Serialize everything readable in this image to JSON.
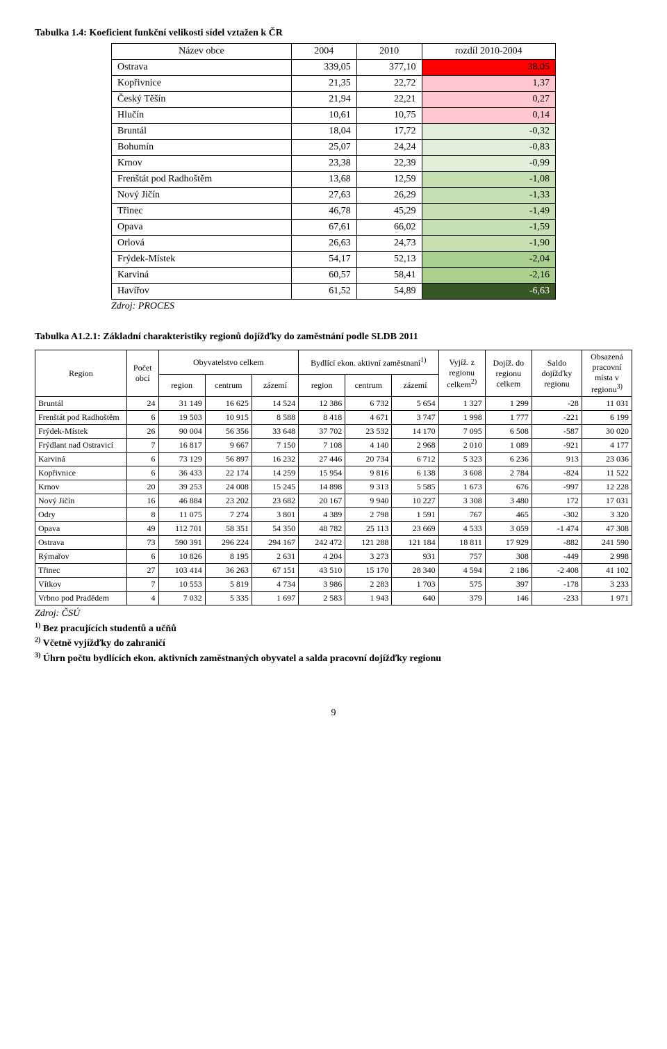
{
  "table1": {
    "caption": "Tabulka 1.4: Koeficient funkční velikosti sídel vztažen k ČR",
    "headers": [
      "Název obce",
      "2004",
      "2010",
      "rozdíl 2010-2004"
    ],
    "rows": [
      {
        "name": "Ostrava",
        "v2004": "339,05",
        "v2010": "377,10",
        "diff": "38,05",
        "bg": "#ff0000"
      },
      {
        "name": "Kopřivnice",
        "v2004": "21,35",
        "v2010": "22,72",
        "diff": "1,37",
        "bg": "#ffc7ce"
      },
      {
        "name": "Český Těšín",
        "v2004": "21,94",
        "v2010": "22,21",
        "diff": "0,27",
        "bg": "#ffc7ce"
      },
      {
        "name": "Hlučín",
        "v2004": "10,61",
        "v2010": "10,75",
        "diff": "0,14",
        "bg": "#ffc7ce"
      },
      {
        "name": "Bruntál",
        "v2004": "18,04",
        "v2010": "17,72",
        "diff": "-0,32",
        "bg": "#e2f0d9"
      },
      {
        "name": "Bohumín",
        "v2004": "25,07",
        "v2010": "24,24",
        "diff": "-0,83",
        "bg": "#e2f0d9"
      },
      {
        "name": "Krnov",
        "v2004": "23,38",
        "v2010": "22,39",
        "diff": "-0,99",
        "bg": "#e2f0d9"
      },
      {
        "name": "Frenštát pod Radhoštěm",
        "v2004": "13,68",
        "v2010": "12,59",
        "diff": "-1,08",
        "bg": "#c6e0b4"
      },
      {
        "name": "Nový Jičín",
        "v2004": "27,63",
        "v2010": "26,29",
        "diff": "-1,33",
        "bg": "#c6e0b4"
      },
      {
        "name": "Třinec",
        "v2004": "46,78",
        "v2010": "45,29",
        "diff": "-1,49",
        "bg": "#c6e0b4"
      },
      {
        "name": "Opava",
        "v2004": "67,61",
        "v2010": "66,02",
        "diff": "-1,59",
        "bg": "#c6e0b4"
      },
      {
        "name": "Orlová",
        "v2004": "26,63",
        "v2010": "24,73",
        "diff": "-1,90",
        "bg": "#c6e0b4"
      },
      {
        "name": "Frýdek-Místek",
        "v2004": "54,17",
        "v2010": "52,13",
        "diff": "-2,04",
        "bg": "#a9d08e"
      },
      {
        "name": "Karviná",
        "v2004": "60,57",
        "v2010": "58,41",
        "diff": "-2,16",
        "bg": "#a9d08e"
      },
      {
        "name": "Havířov",
        "v2004": "61,52",
        "v2010": "54,89",
        "diff": "-6,63",
        "bg": "#385724",
        "color": "#ffffff"
      }
    ],
    "source": "Zdroj: PROCES"
  },
  "table2": {
    "caption": "Tabulka A1.2.1: Základní charakteristiky regionů dojížďky do zaměstnání podle SLDB 2011",
    "headers": {
      "region": "Region",
      "pocet": "Počet obcí",
      "obyv": "Obyvatelstvo celkem",
      "bydl": "Bydlící ekon. aktivní zaměstnaní",
      "bydl_sup": "1)",
      "sub": [
        "region",
        "centrum",
        "zázemí",
        "region",
        "centrum",
        "zázemí"
      ],
      "vyj": "Vyjíž. z regionu celkem",
      "vyj_sup": "2)",
      "doj": "Dojíž. do regionu celkem",
      "saldo": "Saldo dojížďky regionu",
      "obs": "Obsazená pracovní místa v regionu",
      "obs_sup": "3)"
    },
    "rows": [
      {
        "name": "Bruntál",
        "cells": [
          "24",
          "31 149",
          "16 625",
          "14 524",
          "12 386",
          "6 732",
          "5 654",
          "1 327",
          "1 299",
          "-28",
          "11 031"
        ]
      },
      {
        "name": "Frenštát pod Radhoštěm",
        "cells": [
          "6",
          "19 503",
          "10 915",
          "8 588",
          "8 418",
          "4 671",
          "3 747",
          "1 998",
          "1 777",
          "-221",
          "6 199"
        ]
      },
      {
        "name": "Frýdek-Místek",
        "cells": [
          "26",
          "90 004",
          "56 356",
          "33 648",
          "37 702",
          "23 532",
          "14 170",
          "7 095",
          "6 508",
          "-587",
          "30 020"
        ]
      },
      {
        "name": "Frýdlant nad Ostravicí",
        "cells": [
          "7",
          "16 817",
          "9 667",
          "7 150",
          "7 108",
          "4 140",
          "2 968",
          "2 010",
          "1 089",
          "-921",
          "4 177"
        ]
      },
      {
        "name": "Karviná",
        "cells": [
          "6",
          "73 129",
          "56 897",
          "16 232",
          "27 446",
          "20 734",
          "6 712",
          "5 323",
          "6 236",
          "913",
          "23 036"
        ]
      },
      {
        "name": "Kopřivnice",
        "cells": [
          "6",
          "36 433",
          "22 174",
          "14 259",
          "15 954",
          "9 816",
          "6 138",
          "3 608",
          "2 784",
          "-824",
          "11 522"
        ]
      },
      {
        "name": "Krnov",
        "cells": [
          "20",
          "39 253",
          "24 008",
          "15 245",
          "14 898",
          "9 313",
          "5 585",
          "1 673",
          "676",
          "-997",
          "12 228"
        ]
      },
      {
        "name": "Nový Jičín",
        "cells": [
          "16",
          "46 884",
          "23 202",
          "23 682",
          "20 167",
          "9 940",
          "10 227",
          "3 308",
          "3 480",
          "172",
          "17 031"
        ]
      },
      {
        "name": "Odry",
        "cells": [
          "8",
          "11 075",
          "7 274",
          "3 801",
          "4 389",
          "2 798",
          "1 591",
          "767",
          "465",
          "-302",
          "3 320"
        ]
      },
      {
        "name": "Opava",
        "cells": [
          "49",
          "112 701",
          "58 351",
          "54 350",
          "48 782",
          "25 113",
          "23 669",
          "4 533",
          "3 059",
          "-1 474",
          "47 308"
        ]
      },
      {
        "name": "Ostrava",
        "cells": [
          "73",
          "590 391",
          "296 224",
          "294 167",
          "242 472",
          "121 288",
          "121 184",
          "18 811",
          "17 929",
          "-882",
          "241 590"
        ]
      },
      {
        "name": "Rýmařov",
        "cells": [
          "6",
          "10 826",
          "8 195",
          "2 631",
          "4 204",
          "3 273",
          "931",
          "757",
          "308",
          "-449",
          "2 998"
        ]
      },
      {
        "name": "Třinec",
        "cells": [
          "27",
          "103 414",
          "36 263",
          "67 151",
          "43 510",
          "15 170",
          "28 340",
          "4 594",
          "2 186",
          "-2 408",
          "41 102"
        ]
      },
      {
        "name": "Vítkov",
        "cells": [
          "7",
          "10 553",
          "5 819",
          "4 734",
          "3 986",
          "2 283",
          "1 703",
          "575",
          "397",
          "-178",
          "3 233"
        ]
      },
      {
        "name": "Vrbno pod Pradědem",
        "cells": [
          "4",
          "7 032",
          "5 335",
          "1 697",
          "2 583",
          "1 943",
          "640",
          "379",
          "146",
          "-233",
          "1 971"
        ]
      }
    ],
    "notes": {
      "source": "Zdroj: ČSÚ",
      "n1_sup": "1)",
      "n1": " Bez pracujících studentů a učňů",
      "n2_sup": "2)",
      "n2": " Včetně vyjížďky do zahraničí",
      "n3_sup": "3)",
      "n3": " Úhrn počtu bydlících ekon. aktivních zaměstnaných obyvatel a salda pracovní dojížďky regionu"
    }
  },
  "pagenum": "9",
  "colwidths_t2": [
    "110",
    "38",
    "56",
    "56",
    "56",
    "56",
    "56",
    "56",
    "56",
    "56",
    "60",
    "60"
  ]
}
